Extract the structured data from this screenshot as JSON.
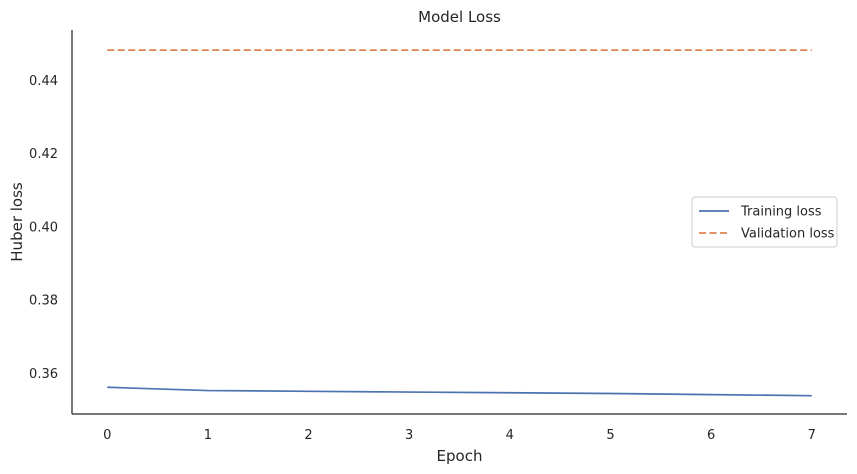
{
  "chart_data": {
    "type": "line",
    "title": "Model Loss",
    "xlabel": "Epoch",
    "ylabel": "Huber loss",
    "x": [
      0,
      1,
      2,
      3,
      4,
      5,
      6,
      7
    ],
    "xticks": [
      "0",
      "1",
      "2",
      "3",
      "4",
      "5",
      "6",
      "7"
    ],
    "yticks": [
      "0.36",
      "0.38",
      "0.40",
      "0.42",
      "0.44"
    ],
    "xlim": [
      -0.35,
      7.35
    ],
    "ylim": [
      0.3489,
      0.4538
    ],
    "grid": false,
    "legend_position": "center-right",
    "series": [
      {
        "name": "Training loss",
        "values": [
          0.3562,
          0.3553,
          0.3551,
          0.3549,
          0.3547,
          0.3545,
          0.3542,
          0.3539
        ],
        "color": "#4c72b0",
        "dash": "solid"
      },
      {
        "name": "Validation loss",
        "values": [
          0.4483,
          0.4483,
          0.4483,
          0.4483,
          0.4483,
          0.4483,
          0.4483,
          0.4483
        ],
        "color": "#dd8452",
        "dash": "dashed"
      }
    ]
  }
}
